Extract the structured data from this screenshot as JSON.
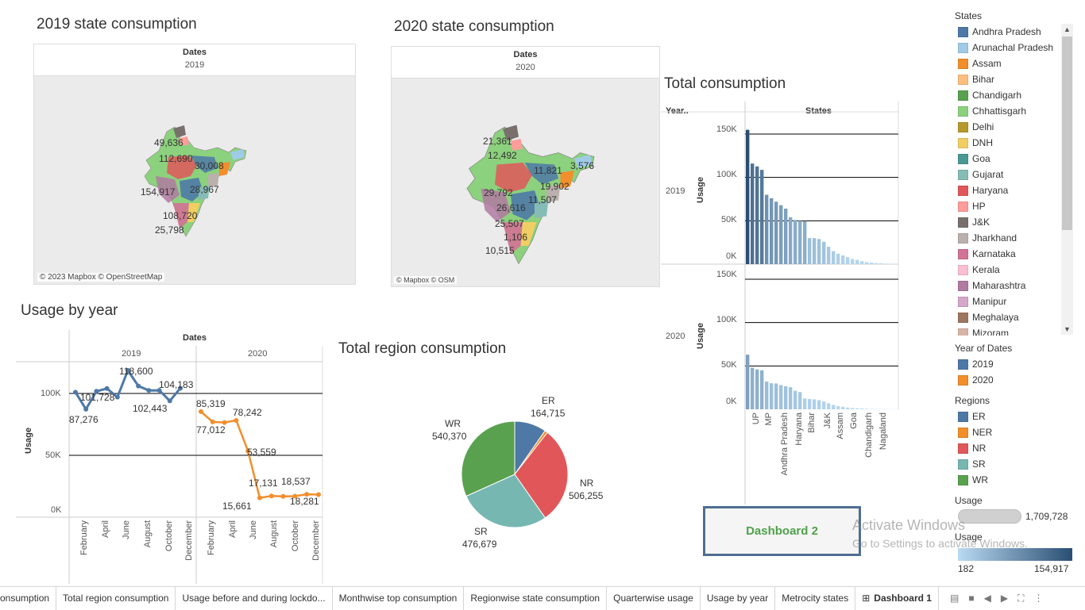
{
  "maps": {
    "m2019": {
      "title": "2019 state consumption",
      "header": "Dates",
      "subheader": "2019",
      "attribution": "© 2023 Mapbox © OpenStreetMap",
      "labels": [
        "49,636",
        "112,690",
        "30,008",
        "28,967",
        "154,917",
        "108,720",
        "25,798"
      ]
    },
    "m2020": {
      "title": "2020 state consumption",
      "header": "Dates",
      "subheader": "2020",
      "attribution": "© Mapbox © OSM",
      "labels": [
        "21,361",
        "12,492",
        "11,821",
        "3,576",
        "19,902",
        "29,792",
        "11,507",
        "26,616",
        "25,507",
        "1,106",
        "10,515"
      ]
    }
  },
  "total": {
    "title": "Total consumption",
    "col_year": "Year..",
    "col_states": "States",
    "y2019": "2019",
    "y2020": "2020",
    "axis": "Usage",
    "ticks": [
      "150K",
      "100K",
      "50K",
      "0K"
    ],
    "xlabels": [
      "UP",
      "MP",
      "Andhra Pradesh",
      "Haryana",
      "Bihar",
      "J&K",
      "Assam",
      "Goa",
      "Chandigarh",
      "Nagaland"
    ]
  },
  "usage_year": {
    "title": "Usage by year",
    "header": "Dates",
    "y2019": "2019",
    "y2020": "2020",
    "axis": "Usage",
    "ticks": [
      "100K",
      "50K",
      "0K"
    ],
    "months2019": [
      "February",
      "April",
      "June",
      "August",
      "October",
      "December"
    ],
    "months2020": [
      "February",
      "April",
      "June",
      "August",
      "October",
      "December"
    ]
  },
  "region": {
    "title": "Total region consumption",
    "labels": {
      "er_name": "ER",
      "er_val": "164,715",
      "nr_name": "NR",
      "nr_val": "506,255",
      "sr_name": "SR",
      "sr_val": "476,679",
      "wr_name": "WR",
      "wr_val": "540,370"
    }
  },
  "legend": {
    "states_title": "States",
    "states": [
      {
        "name": "Andhra Pradesh",
        "color": "#4e79a7"
      },
      {
        "name": "Arunachal Pradesh",
        "color": "#a0cbe8"
      },
      {
        "name": "Assam",
        "color": "#f28e2b"
      },
      {
        "name": "Bihar",
        "color": "#ffbe7d"
      },
      {
        "name": "Chandigarh",
        "color": "#59a14f"
      },
      {
        "name": "Chhattisgarh",
        "color": "#8cd17d"
      },
      {
        "name": "Delhi",
        "color": "#b6992d"
      },
      {
        "name": "DNH",
        "color": "#f1ce63"
      },
      {
        "name": "Goa",
        "color": "#499894"
      },
      {
        "name": "Gujarat",
        "color": "#86bcb6"
      },
      {
        "name": "Haryana",
        "color": "#e15759"
      },
      {
        "name": "HP",
        "color": "#ff9d9a"
      },
      {
        "name": "J&K",
        "color": "#79706e"
      },
      {
        "name": "Jharkhand",
        "color": "#bab0ac"
      },
      {
        "name": "Karnataka",
        "color": "#d37295"
      },
      {
        "name": "Kerala",
        "color": "#fabfd2"
      },
      {
        "name": "Maharashtra",
        "color": "#b07aa1"
      },
      {
        "name": "Manipur",
        "color": "#d4a6c8"
      },
      {
        "name": "Meghalaya",
        "color": "#9d7660"
      },
      {
        "name": "Mizoram",
        "color": "#d7b5a6"
      }
    ],
    "year_title": "Year of Dates",
    "years": [
      {
        "name": "2019",
        "color": "#4e79a7"
      },
      {
        "name": "2020",
        "color": "#f28e2b"
      }
    ],
    "regions_title": "Regions",
    "regions": [
      {
        "name": "ER",
        "color": "#4e79a7"
      },
      {
        "name": "NER",
        "color": "#f28e2b"
      },
      {
        "name": "NR",
        "color": "#e15759"
      },
      {
        "name": "SR",
        "color": "#76b7b2"
      },
      {
        "name": "WR",
        "color": "#59a14f"
      }
    ],
    "usage_title": "Usage",
    "usage_size_max": "1,709,728",
    "usage_color_title": "Usage",
    "usage_color_min": "182",
    "usage_color_max": "154,917"
  },
  "dashboard_button": "Dashboard 2",
  "watermark": {
    "line1": "Activate Windows",
    "line2": "Go to Settings to activate Windows."
  },
  "tabs": [
    "onsumption",
    "Total region consumption",
    "Usage before and during lockdo...",
    "Monthwise top consumption",
    "Regionwise state consumption",
    "Quarterwise usage",
    "Usage by year",
    "Metrocity states",
    "Dashboard 1"
  ],
  "chart_data": [
    {
      "type": "line",
      "title": "Usage by year",
      "ylabel": "Usage",
      "ylim": [
        0,
        125000
      ],
      "grid": true,
      "series": [
        {
          "name": "2019",
          "color": "#4e79a7",
          "values": [
            101000,
            87276,
            101728,
            104000,
            97000,
            118600,
            106000,
            102443,
            102500,
            94000,
            104183
          ]
        },
        {
          "name": "2020",
          "color": "#f28e2b",
          "values": [
            85319,
            77012,
            76500,
            78242,
            53559,
            15661,
            17131,
            16800,
            17000,
            18537,
            18281
          ]
        }
      ],
      "annotations": {
        "2019": [
          "87,276",
          "101,728",
          "118,600",
          "102,443",
          "104,183"
        ],
        "2020": [
          "85,319",
          "77,012",
          "78,242",
          "53,559",
          "15,661",
          "17,131",
          "18,537",
          "18,281"
        ]
      }
    },
    {
      "type": "pie",
      "title": "Total region consumption",
      "categories": [
        "ER",
        "NER",
        "NR",
        "SR",
        "WR"
      ],
      "values": [
        164715,
        15000,
        506255,
        476679,
        540370
      ],
      "colors": [
        "#4e79a7",
        "#f28e2b",
        "#e15759",
        "#76b7b2",
        "#59a14f"
      ]
    },
    {
      "type": "bar",
      "title": "Total consumption",
      "ylabel": "Usage",
      "ylim": [
        0,
        160000
      ],
      "series": [
        {
          "name": "2019",
          "values": [
            154917,
            116000,
            112690,
            108720,
            80000,
            76000,
            72000,
            68000,
            64000,
            54000,
            51000,
            50000,
            49636,
            30008,
            30000,
            28967,
            25798,
            20000,
            15000,
            12000,
            10000,
            8000,
            6000,
            5000,
            3500,
            2500,
            1800,
            1200,
            900,
            500,
            300,
            182
          ]
        },
        {
          "name": "2020",
          "values": [
            63000,
            48000,
            46000,
            45000,
            32000,
            30000,
            29792,
            28000,
            26616,
            25507,
            21361,
            19902,
            12492,
            11821,
            11507,
            10515,
            9000,
            7000,
            5000,
            3576,
            3000,
            2000,
            1500,
            1106,
            900,
            600,
            400,
            300,
            250,
            200,
            190,
            182
          ]
        }
      ]
    }
  ]
}
